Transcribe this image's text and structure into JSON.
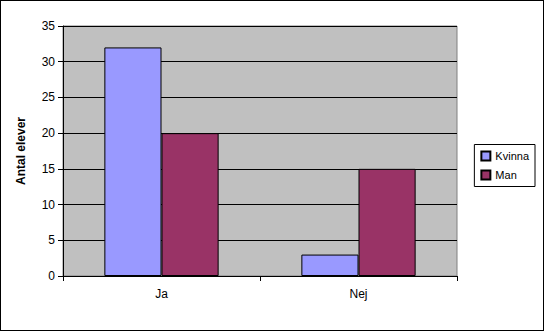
{
  "chart_data": {
    "type": "bar",
    "y_label": "Antal elever",
    "categories": [
      "Ja",
      "Nej"
    ],
    "series": [
      {
        "name": "Kvinna",
        "color": "#9999ff",
        "values": [
          32,
          3
        ]
      },
      {
        "name": "Man",
        "color": "#993366",
        "values": [
          20,
          15
        ]
      }
    ],
    "ylim": [
      0,
      35
    ],
    "yticks": [
      0,
      5,
      10,
      15,
      20,
      25,
      30,
      35
    ],
    "grid": true,
    "legend": "right"
  }
}
